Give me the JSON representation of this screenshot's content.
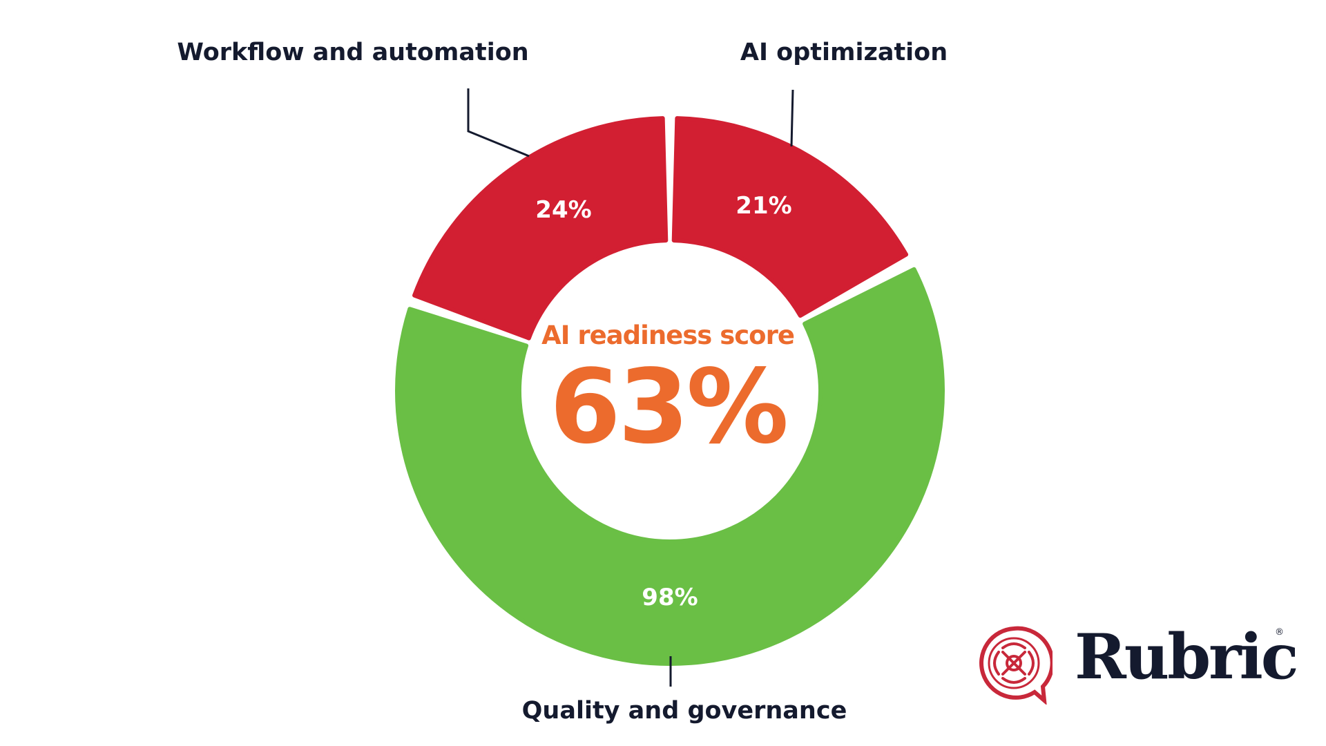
{
  "chart_data": {
    "type": "pie",
    "subtype": "donut",
    "title": "",
    "center": {
      "title": "AI readiness score",
      "value": "63%"
    },
    "categories": [
      "Workflow and automation",
      "AI optimization",
      "Quality and governance"
    ],
    "values": [
      24,
      21,
      98
    ],
    "value_labels": [
      "24%",
      "21%",
      "98%"
    ],
    "colors": [
      "#d21f32",
      "#d21f32",
      "#6abf45"
    ],
    "center_color": "#ec6b2d",
    "legend": "none"
  },
  "brand": {
    "name": "Rubric",
    "registered": "®",
    "icon": "celtic-knot-speech-bubble-icon",
    "color": "#c8283a"
  }
}
